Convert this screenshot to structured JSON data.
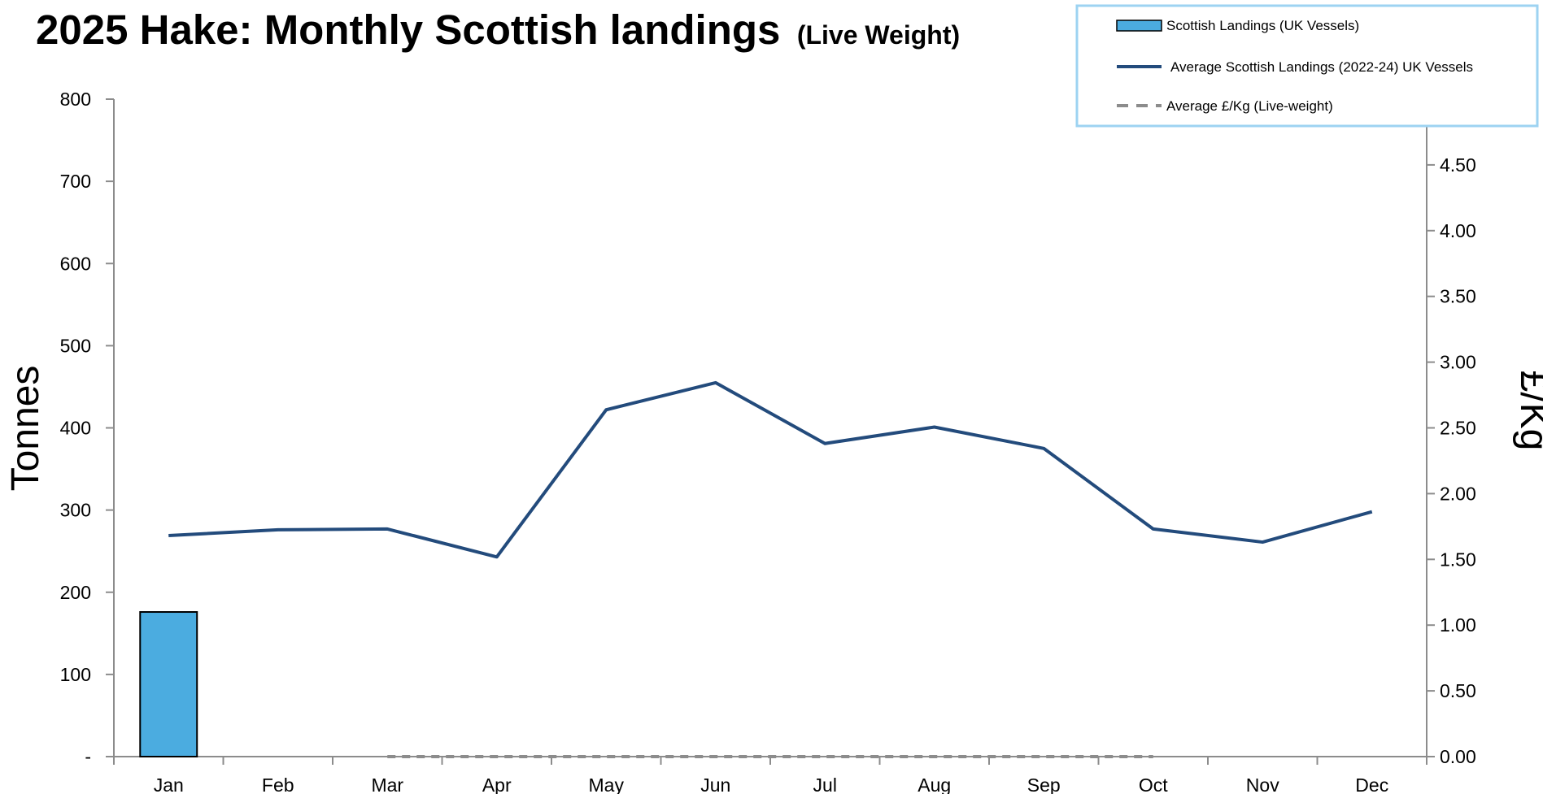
{
  "chart_data": {
    "type": "bar",
    "title": "2025 Hake: Monthly Scottish landings",
    "subtitle": "(Live Weight)",
    "ylabel": "Tonnes",
    "y2label": "£/Kg",
    "xlabel": "",
    "categories": [
      "Jan",
      "Feb",
      "Mar",
      "Apr",
      "May",
      "Jun",
      "Jul",
      "Aug",
      "Sep",
      "Oct",
      "Nov",
      "Dec"
    ],
    "ylim": [
      0,
      800
    ],
    "y_ticks": [
      0,
      100,
      200,
      300,
      400,
      500,
      600,
      700,
      800
    ],
    "y_tick_labels": [
      "-",
      "100",
      "200",
      "300",
      "400",
      "500",
      "600",
      "700",
      "800"
    ],
    "y2lim": [
      0,
      5
    ],
    "y2_ticks": [
      0,
      0.5,
      1,
      1.5,
      2,
      2.5,
      3,
      3.5,
      4,
      4.5
    ],
    "y2_tick_labels": [
      "0.00",
      "0.50",
      "1.00",
      "1.50",
      "2.00",
      "2.50",
      "3.00",
      "3.50",
      "4.00",
      "4.50"
    ],
    "series": [
      {
        "name": "Scottish Landings (UK Vessels)",
        "type": "bar",
        "axis": "left",
        "color": "#4BACE0",
        "values": [
          176,
          null,
          null,
          null,
          null,
          null,
          null,
          null,
          null,
          null,
          null,
          null
        ]
      },
      {
        "name": "Average Scottish Landings  (2022-24) UK Vessels",
        "type": "line",
        "axis": "left",
        "color": "#234B7C",
        "values": [
          269,
          276,
          277,
          243,
          422,
          455,
          381,
          401,
          375,
          277,
          261,
          298
        ]
      },
      {
        "name": "Average £/Kg (Live-weight)",
        "type": "line",
        "style": "dashed",
        "axis": "right",
        "color": "#8C8C8C",
        "values": [
          null,
          null,
          0,
          0,
          0,
          0,
          0,
          0,
          0,
          0,
          null,
          null
        ]
      }
    ],
    "legend_position": "top-right",
    "grid": false
  }
}
